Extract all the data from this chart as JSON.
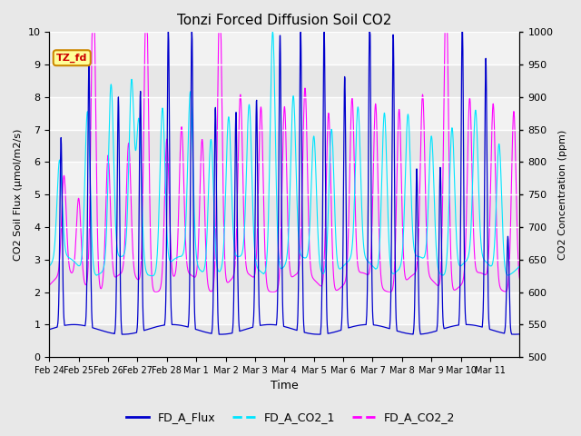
{
  "title": "Tonzi Forced Diffusion Soil CO2",
  "xlabel": "Time",
  "ylabel_left": "CO2 Soil Flux (μmol/m2/s)",
  "ylabel_right": "CO2 Concentration (ppm)",
  "ylim_left": [
    0.0,
    10.0
  ],
  "ylim_right": [
    500,
    1000
  ],
  "bg_color": "#e8e8e8",
  "plot_bg_color": "#f2f2f2",
  "line_flux_color": "#0000cc",
  "line_co2_1_color": "#00e5ff",
  "line_co2_2_color": "#ff00ff",
  "legend_entries": [
    "FD_A_Flux",
    "FD_A_CO2_1",
    "FD_A_CO2_2"
  ],
  "site_label": "TZ_fd",
  "site_label_color": "#cc0000",
  "site_label_bg": "#ffff99",
  "site_label_edge": "#cc8800",
  "xtick_labels": [
    "Feb 24",
    "Feb 25",
    "Feb 26",
    "Feb 27",
    "Feb 28",
    "Mar 1",
    "Mar 2",
    "Mar 3",
    "Mar 4",
    "Mar 5",
    "Mar 6",
    "Mar 7",
    "Mar 8",
    "Mar 9",
    "Mar 10",
    "Mar 11"
  ],
  "ytick_left": [
    0.0,
    1.0,
    2.0,
    3.0,
    4.0,
    5.0,
    6.0,
    7.0,
    8.0,
    9.0,
    10.0
  ],
  "ytick_right": [
    500,
    550,
    600,
    650,
    700,
    750,
    800,
    850,
    900,
    950,
    1000
  ],
  "num_points": 1600,
  "days": 16
}
